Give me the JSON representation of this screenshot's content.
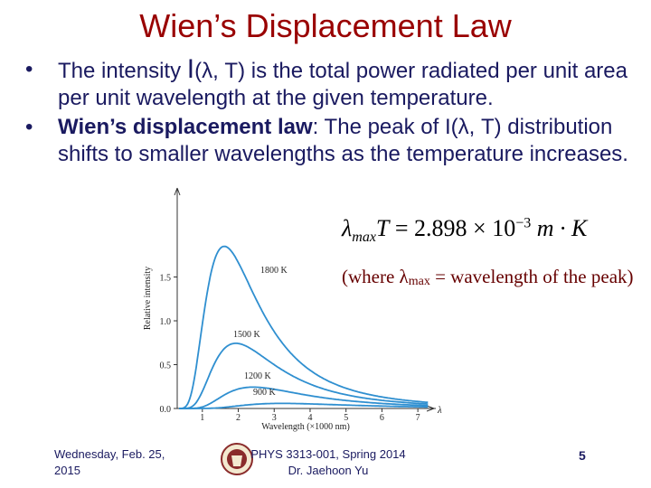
{
  "title": "Wien’s Displacement Law",
  "bullets": {
    "b1": {
      "pre": "The intensity ",
      "symbol": "I",
      "args": "(λ, T)",
      "post": " is the total power radiated per unit area per unit wavelength at the given temperature."
    },
    "b2": {
      "bold": "Wien’s displacement law",
      "pre": ": The peak of ",
      "symbol": "I",
      "args": "(λ, T)",
      "post": " distribution shifts to smaller wavelengths as the temperature increases."
    }
  },
  "formula": {
    "lambda": "λ",
    "sub": "max",
    "T": "T",
    "eq": " = 2.898 × 10",
    "exp": "−3",
    "units": " m · K"
  },
  "note": {
    "pre": "(where λ",
    "sub": "max",
    "post": " = wavelength of the peak)"
  },
  "footer": {
    "date_line1": "Wednesday, Feb. 25,",
    "date_line2": "2015",
    "course_line1": "PHYS 3313-001, Spring 2014",
    "course_line2": "Dr. Jaehoon Yu",
    "page": "5"
  },
  "chart_data": {
    "type": "line",
    "xlabel": "Wavelength (×1000 nm)",
    "ylabel": "Relative intensity",
    "x_axis_symbol": "λ",
    "xticks": [
      "1",
      "2",
      "3",
      "4",
      "5",
      "6",
      "7"
    ],
    "yticks": [
      "0.0",
      "0.5",
      "1.0",
      "1.5"
    ],
    "xlim": [
      0.3,
      7.5
    ],
    "ylim": [
      0,
      2.0
    ],
    "series": [
      {
        "name": "1800 K",
        "T": 1800
      },
      {
        "name": "1500 K",
        "T": 1500
      },
      {
        "name": "1200 K",
        "T": 1200
      },
      {
        "name": "900 K",
        "T": 900
      }
    ],
    "colors": {
      "axis": "#333333",
      "curve": "#2f8fd0"
    }
  }
}
